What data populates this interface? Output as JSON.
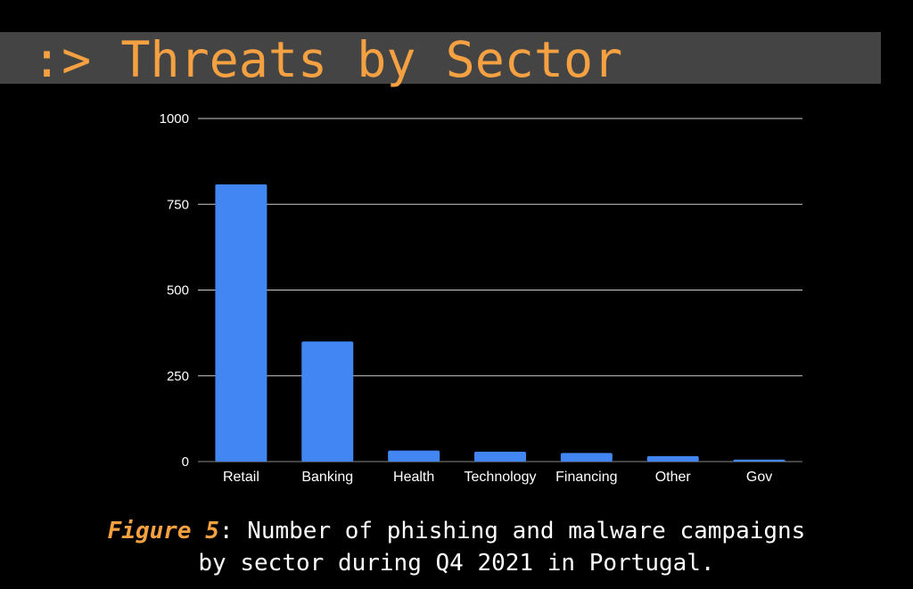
{
  "header": {
    "title": ":> Threats by Sector"
  },
  "chart_data": {
    "type": "bar",
    "categories": [
      "Retail",
      "Banking",
      "Health",
      "Technology",
      "Financing",
      "Other",
      "Gov"
    ],
    "values": [
      808,
      350,
      32,
      29,
      25,
      16,
      6
    ],
    "ylim": [
      0,
      1000
    ],
    "yticks": [
      0,
      250,
      500,
      750,
      1000
    ],
    "grid": true,
    "bar_color": "#4286f4",
    "grid_color": "#cccccc",
    "tick_label_color": "#ffffff"
  },
  "caption": {
    "label": "Figure 5",
    "line1_rest": ": Number of phishing and malware campaigns",
    "line2": "by sector during Q4 2021 in Portugal.",
    "label_color": "#f5a142"
  }
}
